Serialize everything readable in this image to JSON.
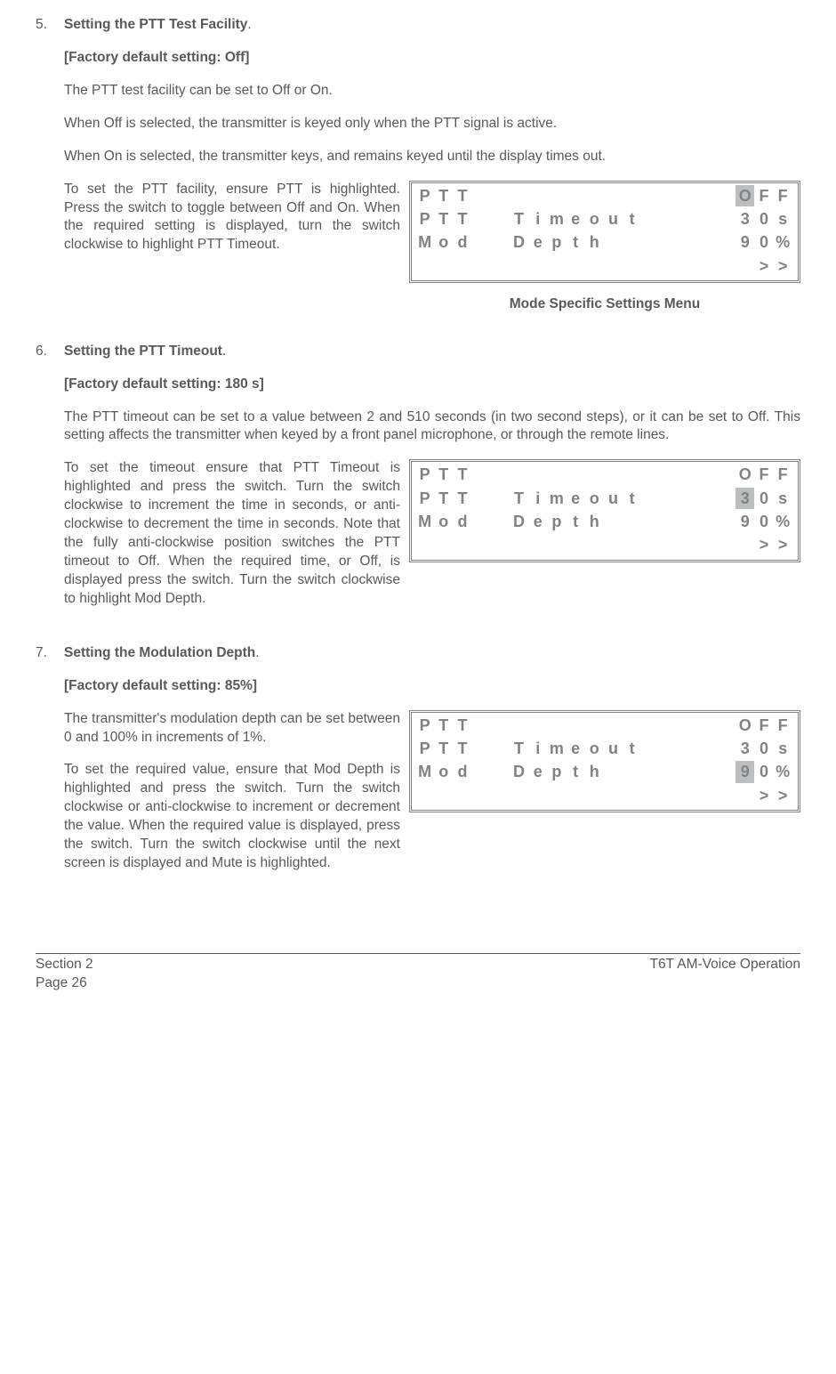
{
  "sections": [
    {
      "num": "5.",
      "title": "Setting the PTT Test Facility",
      "dot": ".",
      "default": "[Factory default setting: Off]",
      "p1": "The PTT test facility can be set to Off or On.",
      "p2": "When Off is selected, the transmitter is keyed only when the PTT signal is active.",
      "p3": "When On is selected, the transmitter keys, and remains keyed until the display times out.",
      "sidetext": "To set the PTT facility, ensure PTT is highlighted. Press the switch to toggle between Off and On. When the required setting is displayed, turn the switch clockwise to highlight PTT Timeout.",
      "caption": "Mode Specific Settings Menu",
      "lcd": {
        "rows": [
          {
            "cells": [
              "P",
              "T",
              "T",
              "",
              "",
              "",
              "",
              "",
              "",
              "",
              "",
              "",
              "",
              "",
              "",
              "",
              "",
              "O",
              "F",
              "F"
            ],
            "hl": [
              17
            ]
          },
          {
            "cells": [
              "P",
              "T",
              "T",
              "",
              "",
              "T",
              "i",
              "m",
              "e",
              "o",
              "u",
              "t",
              "",
              "",
              "",
              "",
              "",
              "3",
              "0",
              "s"
            ],
            "hl": []
          },
          {
            "cells": [
              "M",
              "o",
              "d",
              "",
              "",
              "D",
              "e",
              "p",
              "t",
              "h",
              "",
              "",
              "",
              "",
              "",
              "",
              "",
              "9",
              "0",
              "%"
            ],
            "hl": []
          },
          {
            "cells": [
              "",
              "",
              "",
              "",
              "",
              "",
              "",
              "",
              "",
              "",
              "",
              "",
              "",
              "",
              "",
              "",
              "",
              "",
              ">",
              ">"
            ],
            "hl": []
          }
        ]
      }
    },
    {
      "num": "6.",
      "title": "Setting the PTT Timeout",
      "dot": ".",
      "default": "[Factory default setting: 180 s]",
      "p1": "The PTT timeout can be set to a value between 2 and 510 seconds (in two second steps), or it can be set to Off. This setting affects the transmitter when keyed by a front panel microphone, or through the remote lines.",
      "sidetext": "To set the timeout ensure that PTT Timeout is highlighted and press the switch. Turn the switch clockwise to increment the time in seconds, or anti-clockwise to decrement the time in seconds. Note that the fully anti-clockwise position switches the PTT timeout to Off. When the required time, or Off, is displayed press the switch. Turn the switch clockwise to highlight Mod Depth.",
      "lcd": {
        "rows": [
          {
            "cells": [
              "P",
              "T",
              "T",
              "",
              "",
              "",
              "",
              "",
              "",
              "",
              "",
              "",
              "",
              "",
              "",
              "",
              "",
              "O",
              "F",
              "F"
            ],
            "hl": []
          },
          {
            "cells": [
              "P",
              "T",
              "T",
              "",
              "",
              "T",
              "i",
              "m",
              "e",
              "o",
              "u",
              "t",
              "",
              "",
              "",
              "",
              "",
              "3",
              "0",
              "s"
            ],
            "hl": [
              17
            ]
          },
          {
            "cells": [
              "M",
              "o",
              "d",
              "",
              "",
              "D",
              "e",
              "p",
              "t",
              "h",
              "",
              "",
              "",
              "",
              "",
              "",
              "",
              "9",
              "0",
              "%"
            ],
            "hl": []
          },
          {
            "cells": [
              "",
              "",
              "",
              "",
              "",
              "",
              "",
              "",
              "",
              "",
              "",
              "",
              "",
              "",
              "",
              "",
              "",
              "",
              ">",
              ">"
            ],
            "hl": []
          }
        ]
      }
    },
    {
      "num": "7.",
      "title": "Setting the Modulation Depth",
      "dot": ".",
      "default": "[Factory default setting: 85%]",
      "p1": "The transmitter's modulation depth can be set between 0 and 100% in increments of 1%.",
      "sidetext": "To set the required value, ensure that Mod Depth is highlighted and press the switch. Turn the switch clockwise or anti-clockwise to increment or decrement the value. When the required value is displayed, press the switch. Turn the switch clockwise until the next screen is displayed and Mute is highlighted.",
      "lcd": {
        "rows": [
          {
            "cells": [
              "P",
              "T",
              "T",
              "",
              "",
              "",
              "",
              "",
              "",
              "",
              "",
              "",
              "",
              "",
              "",
              "",
              "",
              "O",
              "F",
              "F"
            ],
            "hl": []
          },
          {
            "cells": [
              "P",
              "T",
              "T",
              "",
              "",
              "T",
              "i",
              "m",
              "e",
              "o",
              "u",
              "t",
              "",
              "",
              "",
              "",
              "",
              "3",
              "0",
              "s"
            ],
            "hl": []
          },
          {
            "cells": [
              "M",
              "o",
              "d",
              "",
              "",
              "D",
              "e",
              "p",
              "t",
              "h",
              "",
              "",
              "",
              "",
              "",
              "",
              "",
              "9",
              "0",
              "%"
            ],
            "hl": [
              17
            ]
          },
          {
            "cells": [
              "",
              "",
              "",
              "",
              "",
              "",
              "",
              "",
              "",
              "",
              "",
              "",
              "",
              "",
              "",
              "",
              "",
              "",
              ">",
              ">"
            ],
            "hl": []
          }
        ]
      }
    }
  ],
  "footer": {
    "left1": "Section 2",
    "left2": "Page 26",
    "right": "T6T AM-Voice Operation"
  }
}
